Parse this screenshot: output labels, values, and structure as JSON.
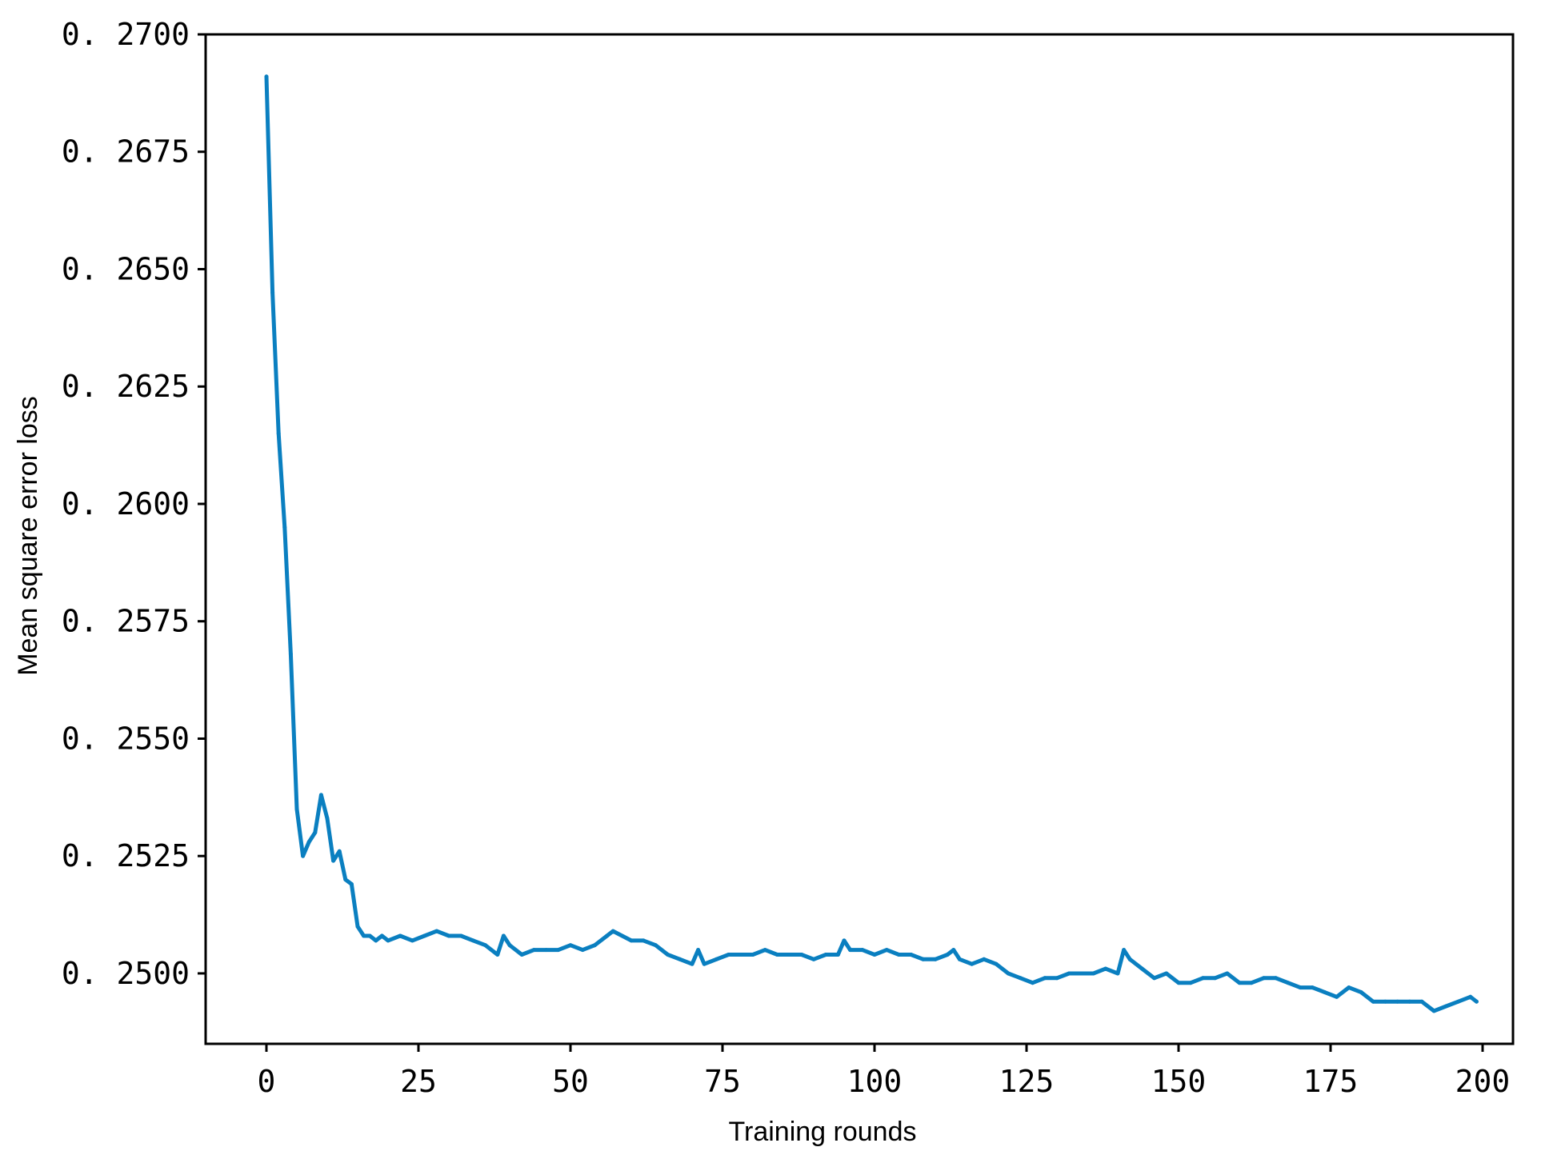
{
  "chart_data": {
    "type": "line",
    "title": "",
    "xlabel": "Training rounds",
    "ylabel": "Mean square error loss",
    "xlim": [
      -10,
      205
    ],
    "ylim": [
      0.2485,
      0.27
    ],
    "x_ticks": [
      0,
      25,
      50,
      75,
      100,
      125,
      150,
      175,
      200
    ],
    "x_tick_labels": [
      "0",
      "25",
      "50",
      "75",
      "100",
      "125",
      "150",
      "175",
      "200"
    ],
    "y_ticks": [
      0.25,
      0.2525,
      0.255,
      0.2575,
      0.26,
      0.2625,
      0.265,
      0.2675,
      0.27
    ],
    "y_tick_labels": [
      "0. 2500",
      "0. 2525",
      "0. 2550",
      "0. 2575",
      "0. 2600",
      "0. 2625",
      "0. 2650",
      "0. 2675",
      "0. 2700"
    ],
    "grid": false,
    "line_color": "#0a7fc0",
    "series": [
      {
        "x": [
          0,
          1,
          2,
          3,
          4,
          5,
          6,
          7,
          8,
          9,
          10,
          11,
          12,
          13,
          14,
          15,
          16,
          17,
          18,
          19,
          20,
          22,
          24,
          26,
          28,
          30,
          32,
          34,
          36,
          38,
          39,
          40,
          42,
          44,
          46,
          48,
          50,
          52,
          54,
          56,
          57,
          60,
          62,
          64,
          66,
          68,
          70,
          71,
          72,
          74,
          76,
          78,
          80,
          82,
          84,
          86,
          88,
          90,
          92,
          94,
          95,
          96,
          98,
          100,
          102,
          104,
          106,
          108,
          110,
          112,
          113,
          114,
          116,
          118,
          120,
          122,
          124,
          126,
          128,
          130,
          132,
          134,
          136,
          138,
          140,
          141,
          142,
          144,
          146,
          148,
          150,
          152,
          154,
          156,
          158,
          160,
          162,
          164,
          166,
          168,
          170,
          172,
          174,
          176,
          178,
          180,
          182,
          184,
          186,
          188,
          190,
          192,
          194,
          196,
          198,
          199
        ],
        "y": [
          0.2691,
          0.2645,
          0.2615,
          0.2595,
          0.2568,
          0.2535,
          0.2525,
          0.2528,
          0.253,
          0.2538,
          0.2533,
          0.2524,
          0.2526,
          0.252,
          0.2519,
          0.251,
          0.2508,
          0.2508,
          0.2507,
          0.2508,
          0.2507,
          0.2508,
          0.2507,
          0.2508,
          0.2509,
          0.2508,
          0.2508,
          0.2507,
          0.2506,
          0.2504,
          0.2508,
          0.2506,
          0.2504,
          0.2505,
          0.2505,
          0.2505,
          0.2506,
          0.2505,
          0.2506,
          0.2508,
          0.2509,
          0.2507,
          0.2507,
          0.2506,
          0.2504,
          0.2503,
          0.2502,
          0.2505,
          0.2502,
          0.2503,
          0.2504,
          0.2504,
          0.2504,
          0.2505,
          0.2504,
          0.2504,
          0.2504,
          0.2503,
          0.2504,
          0.2504,
          0.2507,
          0.2505,
          0.2505,
          0.2504,
          0.2505,
          0.2504,
          0.2504,
          0.2503,
          0.2503,
          0.2504,
          0.2505,
          0.2503,
          0.2502,
          0.2503,
          0.2502,
          0.25,
          0.2499,
          0.2498,
          0.2499,
          0.2499,
          0.25,
          0.25,
          0.25,
          0.2501,
          0.25,
          0.2505,
          0.2503,
          0.2501,
          0.2499,
          0.25,
          0.2498,
          0.2498,
          0.2499,
          0.2499,
          0.25,
          0.2498,
          0.2498,
          0.2499,
          0.2499,
          0.2498,
          0.2497,
          0.2497,
          0.2496,
          0.2495,
          0.2497,
          0.2496,
          0.2494,
          0.2494,
          0.2494,
          0.2494,
          0.2494,
          0.2492,
          0.2493,
          0.2494,
          0.2495,
          0.2494
        ]
      }
    ]
  }
}
